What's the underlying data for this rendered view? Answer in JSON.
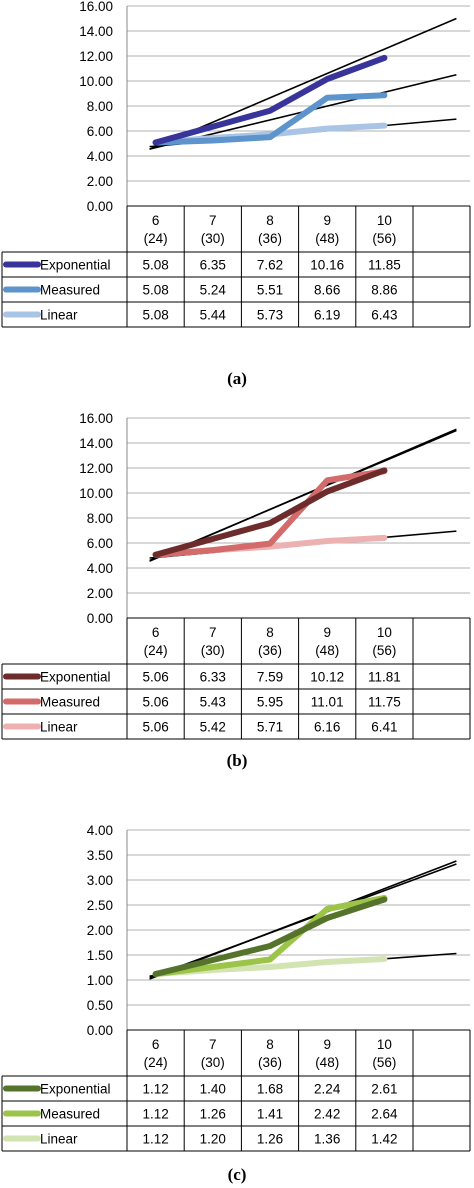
{
  "chart_data": [
    {
      "type": "line",
      "caption": "(a)",
      "ylim": [
        0,
        16
      ],
      "yticks": [
        "0.00",
        "2.00",
        "4.00",
        "6.00",
        "8.00",
        "10.00",
        "12.00",
        "14.00",
        "16.00"
      ],
      "categories": [
        {
          "top": "6",
          "bottom": "(24)"
        },
        {
          "top": "7",
          "bottom": "(30)"
        },
        {
          "top": "8",
          "bottom": "(36)"
        },
        {
          "top": "9",
          "bottom": "(48)"
        },
        {
          "top": "10",
          "bottom": "(56)"
        }
      ],
      "series": [
        {
          "name": "Exponential",
          "color": "#38349a",
          "values": [
            5.08,
            6.35,
            7.62,
            10.16,
            11.85
          ],
          "labels": [
            "5.08",
            "6.35",
            "7.62",
            "10.16",
            "11.85"
          ]
        },
        {
          "name": "Measured",
          "color": "#5d94cc",
          "values": [
            5.08,
            5.24,
            5.51,
            8.66,
            8.86
          ],
          "labels": [
            "5.08",
            "5.24",
            "5.51",
            "8.66",
            "8.86"
          ]
        },
        {
          "name": "Linear",
          "color": "#a9c4e4",
          "values": [
            5.08,
            5.44,
            5.73,
            6.19,
            6.43
          ],
          "labels": [
            "5.08",
            "5.44",
            "5.73",
            "6.19",
            "6.43"
          ]
        }
      ],
      "trendlines": [
        {
          "color": "#000000",
          "values": [
            4.55,
            15.0
          ]
        },
        {
          "color": "#000000",
          "values": [
            4.55,
            10.5
          ]
        },
        {
          "color": "#000000",
          "values": [
            4.75,
            6.95
          ]
        }
      ]
    },
    {
      "type": "line",
      "caption": "(b)",
      "ylim": [
        0,
        16
      ],
      "yticks": [
        "0.00",
        "2.00",
        "4.00",
        "6.00",
        "8.00",
        "10.00",
        "12.00",
        "14.00",
        "16.00"
      ],
      "categories": [
        {
          "top": "6",
          "bottom": "(24)"
        },
        {
          "top": "7",
          "bottom": "(30)"
        },
        {
          "top": "8",
          "bottom": "(36)"
        },
        {
          "top": "9",
          "bottom": "(48)"
        },
        {
          "top": "10",
          "bottom": "(56)"
        }
      ],
      "series": [
        {
          "name": "Exponential",
          "color": "#6e2b2b",
          "values": [
            5.06,
            6.33,
            7.59,
            10.12,
            11.81
          ],
          "labels": [
            "5.06",
            "6.33",
            "7.59",
            "10.12",
            "11.81"
          ]
        },
        {
          "name": "Measured",
          "color": "#d36b6b",
          "values": [
            5.06,
            5.43,
            5.95,
            11.01,
            11.75
          ],
          "labels": [
            "5.06",
            "5.43",
            "5.95",
            "11.01",
            "11.75"
          ]
        },
        {
          "name": "Linear",
          "color": "#eeb1b1",
          "values": [
            5.06,
            5.42,
            5.71,
            6.16,
            6.41
          ],
          "labels": [
            "5.06",
            "5.42",
            "5.71",
            "6.16",
            "6.41"
          ]
        }
      ],
      "trendlines": [
        {
          "color": "#000000",
          "values": [
            4.55,
            15.1
          ]
        },
        {
          "color": "#000000",
          "values": [
            4.6,
            15.0
          ]
        },
        {
          "color": "#000000",
          "values": [
            4.8,
            6.95
          ]
        }
      ]
    },
    {
      "type": "line",
      "caption": "(c)",
      "ylim": [
        0,
        4
      ],
      "yticks": [
        "0.00",
        "0.50",
        "1.00",
        "1.50",
        "2.00",
        "2.50",
        "3.00",
        "3.50",
        "4.00"
      ],
      "categories": [
        {
          "top": "6",
          "bottom": "(24)"
        },
        {
          "top": "7",
          "bottom": "(30)"
        },
        {
          "top": "8",
          "bottom": "(36)"
        },
        {
          "top": "9",
          "bottom": "(48)"
        },
        {
          "top": "10",
          "bottom": "(56)"
        }
      ],
      "series": [
        {
          "name": "Exponential",
          "color": "#55732b",
          "values": [
            1.12,
            1.4,
            1.68,
            2.24,
            2.61
          ],
          "labels": [
            "1.12",
            "1.40",
            "1.68",
            "2.24",
            "2.61"
          ]
        },
        {
          "name": "Measured",
          "color": "#9cc449",
          "values": [
            1.12,
            1.26,
            1.41,
            2.42,
            2.64
          ],
          "labels": [
            "1.12",
            "1.26",
            "1.41",
            "2.42",
            "2.64"
          ]
        },
        {
          "name": "Linear",
          "color": "#d3e4b3",
          "values": [
            1.12,
            1.2,
            1.26,
            1.36,
            1.42
          ],
          "labels": [
            "1.12",
            "1.20",
            "1.26",
            "1.36",
            "1.42"
          ]
        }
      ],
      "trendlines": [
        {
          "color": "#000000",
          "values": [
            1.02,
            3.38
          ]
        },
        {
          "color": "#000000",
          "values": [
            1.05,
            3.32
          ]
        },
        {
          "color": "#000000",
          "values": [
            1.08,
            1.53
          ]
        }
      ]
    }
  ]
}
